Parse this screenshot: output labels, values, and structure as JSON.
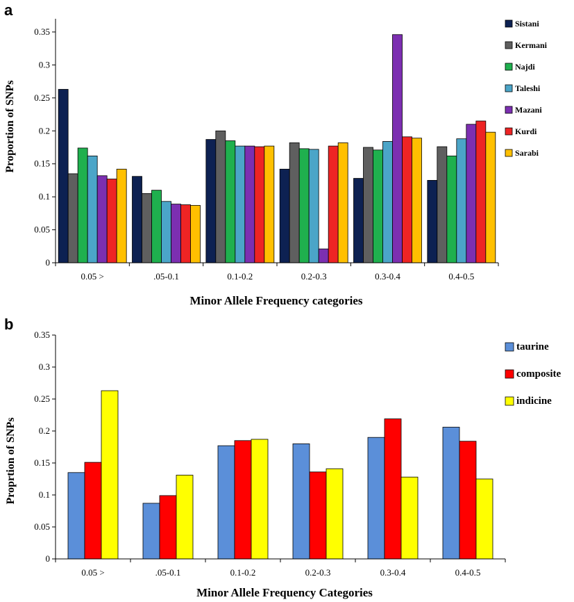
{
  "chart_data": [
    {
      "panel_label": "a",
      "type": "bar",
      "categories": [
        "0.05 >",
        ".05-0.1",
        "0.1-0.2",
        "0.2-0.3",
        "0.3-0.4",
        "0.4-0.5"
      ],
      "series": [
        {
          "name": "Sistani",
          "color": "#0d2152",
          "values": [
            0.263,
            0.131,
            0.187,
            0.142,
            0.128,
            0.125
          ]
        },
        {
          "name": "Kermani",
          "color": "#5f5f5f",
          "values": [
            0.135,
            0.105,
            0.2,
            0.182,
            0.175,
            0.176
          ]
        },
        {
          "name": "Najdi",
          "color": "#1fb04e",
          "values": [
            0.174,
            0.11,
            0.185,
            0.173,
            0.171,
            0.162
          ]
        },
        {
          "name": "Taleshi",
          "color": "#4ba5c8",
          "values": [
            0.162,
            0.093,
            0.177,
            0.172,
            0.184,
            0.188
          ]
        },
        {
          "name": "Mazani",
          "color": "#7c2fb1",
          "values": [
            0.132,
            0.089,
            0.177,
            0.021,
            0.346,
            0.21
          ]
        },
        {
          "name": "Kurdi",
          "color": "#ee2424",
          "values": [
            0.127,
            0.088,
            0.176,
            0.177,
            0.191,
            0.215
          ]
        },
        {
          "name": "Sarabi",
          "color": "#ffc000",
          "values": [
            0.142,
            0.087,
            0.177,
            0.182,
            0.189,
            0.198
          ]
        }
      ],
      "ylim": [
        0,
        0.37
      ],
      "yticks": [
        "0",
        "0.05",
        "0.1",
        "0.15",
        "0.2",
        "0.25",
        "0.3",
        "0.35"
      ],
      "xlabel": "Minor Allele Frequency categories",
      "ylabel": "Proportion of SNPs",
      "legend_position": "right"
    },
    {
      "panel_label": "b",
      "type": "bar",
      "categories": [
        "0.05 >",
        ".05-0.1",
        "0.1-0.2",
        "0.2-0.3",
        "0.3-0.4",
        "0.4-0.5"
      ],
      "series": [
        {
          "name": "taurine",
          "color": "#5b8fd9",
          "values": [
            0.135,
            0.087,
            0.177,
            0.18,
            0.19,
            0.206
          ]
        },
        {
          "name": "composite",
          "color": "#ff0000",
          "values": [
            0.151,
            0.099,
            0.185,
            0.136,
            0.219,
            0.184
          ]
        },
        {
          "name": "indicine",
          "color": "#ffff00",
          "values": [
            0.263,
            0.131,
            0.187,
            0.141,
            0.128,
            0.125
          ]
        }
      ],
      "ylim": [
        0,
        0.35
      ],
      "yticks": [
        "0",
        "0.05",
        "0.1",
        "0.15",
        "0.2",
        "0.25",
        "0.3",
        "0.35"
      ],
      "xlabel": "Minor Allele Frequency Categories",
      "ylabel": "Proprtion of SNPs",
      "legend_position": "top-right"
    }
  ]
}
